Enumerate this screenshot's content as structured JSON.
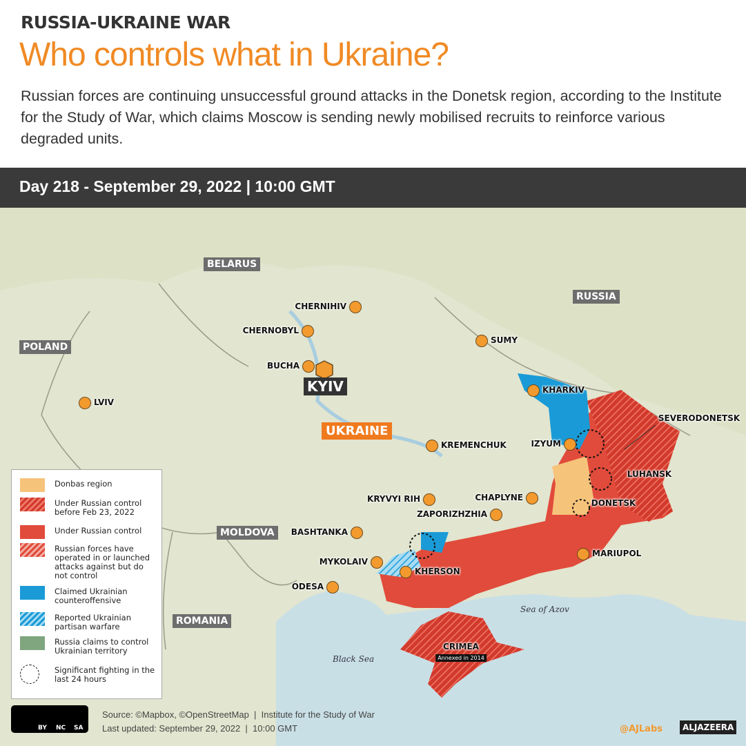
{
  "header": {
    "kicker": "RUSSIA-UKRAINE WAR",
    "title": "Who controls what in Ukraine?",
    "description": "Russian forces are continuing unsuccessful ground attacks in the Donetsk region, according to the Institute for the Study of War, which claims Moscow is sending newly mobilised recruits to reinforce various degraded units.",
    "date": "Day 218 - September 29, 2022 | 10:00 GMT"
  },
  "map": {
    "countries": [
      "BELARUS",
      "RUSSIA",
      "POLAND",
      "MOLDOVA",
      "ROMANIA"
    ],
    "country_label": "UKRAINE",
    "capital": "KYIV",
    "cities": [
      "CHERNIHIV",
      "CHERNOBYL",
      "SUMY",
      "BUCHA",
      "LVIV",
      "KHARKIV",
      "IZYUM",
      "KREMENCHUK",
      "KRYVYI RIH",
      "CHAPLYNE",
      "ZAPORIZHZHIA",
      "BASHTANKA",
      "MARIUPOL",
      "MYKOLAIV",
      "KHERSON",
      "ODESA"
    ],
    "region_labels": [
      "SEVERODONETSK",
      "LUHANSK",
      "DONETSK",
      "CRIMEA"
    ],
    "crimea_note": "Annexed in 2014",
    "seas": [
      "Sea of Azov",
      "Black Sea"
    ]
  },
  "legend": [
    "Donbas region",
    "Under Russian control before Feb 23, 2022",
    "Under Russian control",
    "Russian forces have operated in or launched attacks against but do not control",
    "Claimed Ukrainian counteroffensive",
    "Reported Ukrainian partisan warfare",
    "Russia claims to control Ukrainian territory",
    "Significant fighting in the last 24 hours"
  ],
  "footer": {
    "cc": [
      "BY",
      "NC",
      "SA"
    ],
    "source": "Source: ©Mapbox, ©OpenStreetMap  |  Institute for the Study of War",
    "updated": "Last updated: September 29, 2022  |  10:00 GMT",
    "handle": "@AJLabs",
    "brand": "ALJAZEERA"
  }
}
